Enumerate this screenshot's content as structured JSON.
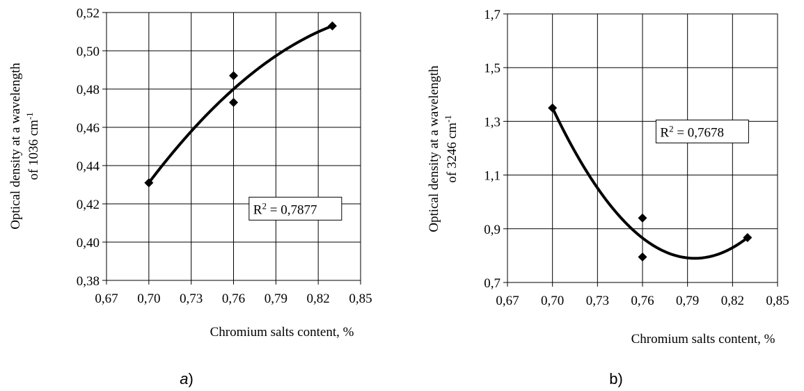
{
  "chart_data": [
    {
      "id": "a",
      "type": "scatter",
      "panel_label_letter": "a",
      "panel_label_close": ")",
      "xlabel": "Chromium salts content, %",
      "ylabel_line1": "Optical density at a wavelength",
      "ylabel_line2_prefix": "of 1036 cm",
      "ylabel_line2_sup": "-1",
      "xlim": [
        0.67,
        0.85
      ],
      "ylim": [
        0.38,
        0.52
      ],
      "xticks": [
        0.67,
        0.7,
        0.73,
        0.76,
        0.79,
        0.82,
        0.85
      ],
      "yticks": [
        0.38,
        0.4,
        0.42,
        0.44,
        0.46,
        0.48,
        0.5,
        0.52
      ],
      "xtick_labels": [
        "0,67",
        "0,70",
        "0,73",
        "0,76",
        "0,79",
        "0,82",
        "0,85"
      ],
      "ytick_labels": [
        "0,38",
        "0,40",
        "0,42",
        "0,44",
        "0,46",
        "0,48",
        "0,50",
        "0,52"
      ],
      "grid": true,
      "points": [
        {
          "x": 0.7,
          "y": 0.431
        },
        {
          "x": 0.76,
          "y": 0.487
        },
        {
          "x": 0.76,
          "y": 0.473
        },
        {
          "x": 0.83,
          "y": 0.513
        }
      ],
      "trendline": {
        "type": "polynomial-2",
        "from": [
          0.7,
          0.431
        ],
        "through": [
          0.76,
          0.48
        ],
        "to": [
          0.83,
          0.513
        ]
      },
      "r2_label": {
        "prefix": "R",
        "sup": "2",
        "text": " = 0,7877"
      },
      "r2_box_anchor": [
        0.771,
        0.4235
      ]
    },
    {
      "id": "b",
      "type": "scatter",
      "panel_label_letter": "b",
      "panel_label_close": ")",
      "xlabel": "Chromium salts content, %",
      "ylabel_line1": "Optical density at a wavelength",
      "ylabel_line2_prefix": "of 3246 cm",
      "ylabel_line2_sup": "-1",
      "xlim": [
        0.67,
        0.85
      ],
      "ylim": [
        0.7,
        1.7
      ],
      "xticks": [
        0.67,
        0.7,
        0.73,
        0.76,
        0.79,
        0.82,
        0.85
      ],
      "yticks": [
        0.7,
        0.9,
        1.1,
        1.3,
        1.5,
        1.7
      ],
      "xtick_labels": [
        "0,67",
        "0,70",
        "0,73",
        "0,76",
        "0,79",
        "0,82",
        "0,85"
      ],
      "ytick_labels": [
        "0,7",
        "0,9",
        "1,1",
        "1,3",
        "1,5",
        "1,7"
      ],
      "grid": true,
      "points": [
        {
          "x": 0.7,
          "y": 1.35
        },
        {
          "x": 0.76,
          "y": 0.94
        },
        {
          "x": 0.76,
          "y": 0.795
        },
        {
          "x": 0.83,
          "y": 0.867
        }
      ],
      "trendline": {
        "type": "polynomial-2",
        "from": [
          0.7,
          1.35
        ],
        "through": [
          0.795,
          0.79
        ],
        "to": [
          0.83,
          0.867
        ]
      },
      "r2_label": {
        "prefix": "R",
        "sup": "2",
        "text": " = 0,7678"
      },
      "r2_box_anchor": [
        0.769,
        1.305
      ]
    }
  ]
}
